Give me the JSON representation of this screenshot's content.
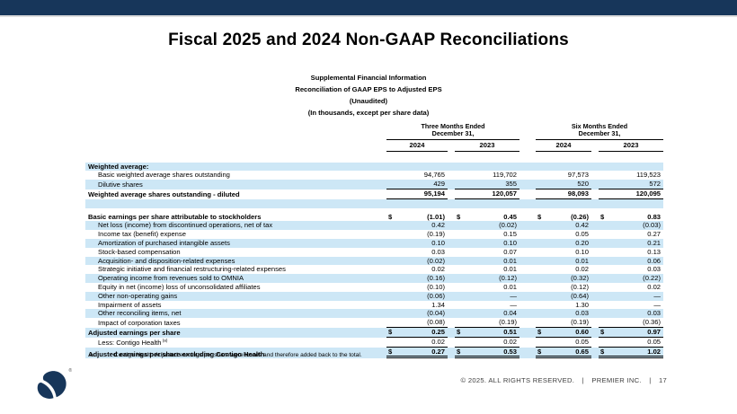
{
  "slide": {
    "title": "Fiscal 2025 and 2024 Non-GAAP Reconciliations",
    "subtitle_lines": [
      "Supplemental Financial Information",
      "Reconciliation of GAAP EPS to Adjusted EPS",
      "(Unaudited)",
      "(In thousands, except per share data)"
    ]
  },
  "colors": {
    "top_bar": "#17365A",
    "row_shade": "#CDE7F6",
    "logo_navy": "#17365A"
  },
  "table": {
    "currency_symbol": "$",
    "col_groups": [
      {
        "line1": "Three Months Ended",
        "line2": "December 31,"
      },
      {
        "line1": "Six Months Ended",
        "line2": "December 31,"
      }
    ],
    "year_headers": [
      "2024",
      "2023",
      "2024",
      "2023"
    ],
    "rows": [
      {
        "label": "Weighted average:",
        "bold": true,
        "shade": true,
        "values": [
          "",
          "",
          "",
          ""
        ]
      },
      {
        "label": "Basic weighted average shares outstanding",
        "indent": true,
        "values": [
          "94,765",
          "119,702",
          "97,573",
          "119,523"
        ]
      },
      {
        "label": "Dilutive shares",
        "indent": true,
        "shade": true,
        "values": [
          "429",
          "355",
          "520",
          "572"
        ],
        "rule": "u"
      },
      {
        "label": "Weighted average shares outstanding - diluted",
        "bold": true,
        "values": [
          "95,194",
          "120,057",
          "98,093",
          "120,095"
        ],
        "rule": "u"
      },
      {
        "spacer": true,
        "shade": true
      },
      {
        "spacer": true,
        "half": true
      },
      {
        "label": "Basic earnings per share attributable to stockholders",
        "bold": true,
        "dollar": true,
        "values": [
          "(1.01)",
          "0.45",
          "(0.26)",
          "0.83"
        ]
      },
      {
        "label": "Net loss (income) from discontinued operations, net of tax",
        "indent": true,
        "shade": true,
        "values": [
          "0.42",
          "(0.02)",
          "0.42",
          "(0.03)"
        ]
      },
      {
        "label": "Income tax (benefit) expense",
        "indent": true,
        "values": [
          "(0.19)",
          "0.15",
          "0.05",
          "0.27"
        ]
      },
      {
        "label": "Amortization of purchased intangible assets",
        "indent": true,
        "shade": true,
        "values": [
          "0.10",
          "0.10",
          "0.20",
          "0.21"
        ]
      },
      {
        "label": "Stock-based compensation",
        "indent": true,
        "values": [
          "0.03",
          "0.07",
          "0.10",
          "0.13"
        ]
      },
      {
        "label": "Acquisition- and disposition-related expenses",
        "indent": true,
        "shade": true,
        "values": [
          "(0.02)",
          "0.01",
          "0.01",
          "0.06"
        ]
      },
      {
        "label": "Strategic initiative and financial restructuring-related expenses",
        "indent": true,
        "values": [
          "0.02",
          "0.01",
          "0.02",
          "0.03"
        ]
      },
      {
        "label": "Operating income from revenues sold to OMNIA",
        "indent": true,
        "shade": true,
        "values": [
          "(0.16)",
          "(0.12)",
          "(0.32)",
          "(0.22)"
        ]
      },
      {
        "label": "Equity in net (income) loss of unconsolidated affiliates",
        "indent": true,
        "values": [
          "(0.10)",
          "0.01",
          "(0.12)",
          "0.02"
        ]
      },
      {
        "label": "Other non-operating gains",
        "indent": true,
        "shade": true,
        "values": [
          "(0.06)",
          "—",
          "(0.64)",
          "—"
        ]
      },
      {
        "label": "Impairment of assets",
        "indent": true,
        "values": [
          "1.34",
          "—",
          "1.30",
          "—"
        ]
      },
      {
        "label": "Other reconciling items, net",
        "indent": true,
        "shade": true,
        "values": [
          "(0.04)",
          "0.04",
          "0.03",
          "0.03"
        ]
      },
      {
        "label": "Impact of corporation taxes",
        "indent": true,
        "values": [
          "(0.08)",
          "(0.19)",
          "(0.19)",
          "(0.36)"
        ],
        "rule": "u"
      },
      {
        "label": "Adjusted earnings per share",
        "bold": true,
        "shade": true,
        "dollar": true,
        "values": [
          "0.25",
          "0.51",
          "0.60",
          "0.97"
        ],
        "rule": "u"
      },
      {
        "label": "Less: Contigo Health",
        "footnote_ref": "(a)",
        "indent": true,
        "values": [
          "0.02",
          "0.02",
          "0.05",
          "0.05"
        ],
        "rule": "u"
      },
      {
        "label": "Adjusted earnings per share excluding Contigo Health",
        "bold": true,
        "shade": true,
        "dollar": true,
        "values": [
          "0.27",
          "0.53",
          "0.65",
          "1.02"
        ],
        "rule": "uu"
      }
    ]
  },
  "footnote": {
    "marker": "a.",
    "text": "Contigo Health Adjusted earnings per share were losses and therefore added back to the total."
  },
  "footer": {
    "copyright": "© 2025. ALL RIGHTS RESERVED.",
    "separator": "|",
    "company": "PREMIER INC.",
    "page": "17"
  },
  "logo": {
    "registered_mark": "®"
  }
}
